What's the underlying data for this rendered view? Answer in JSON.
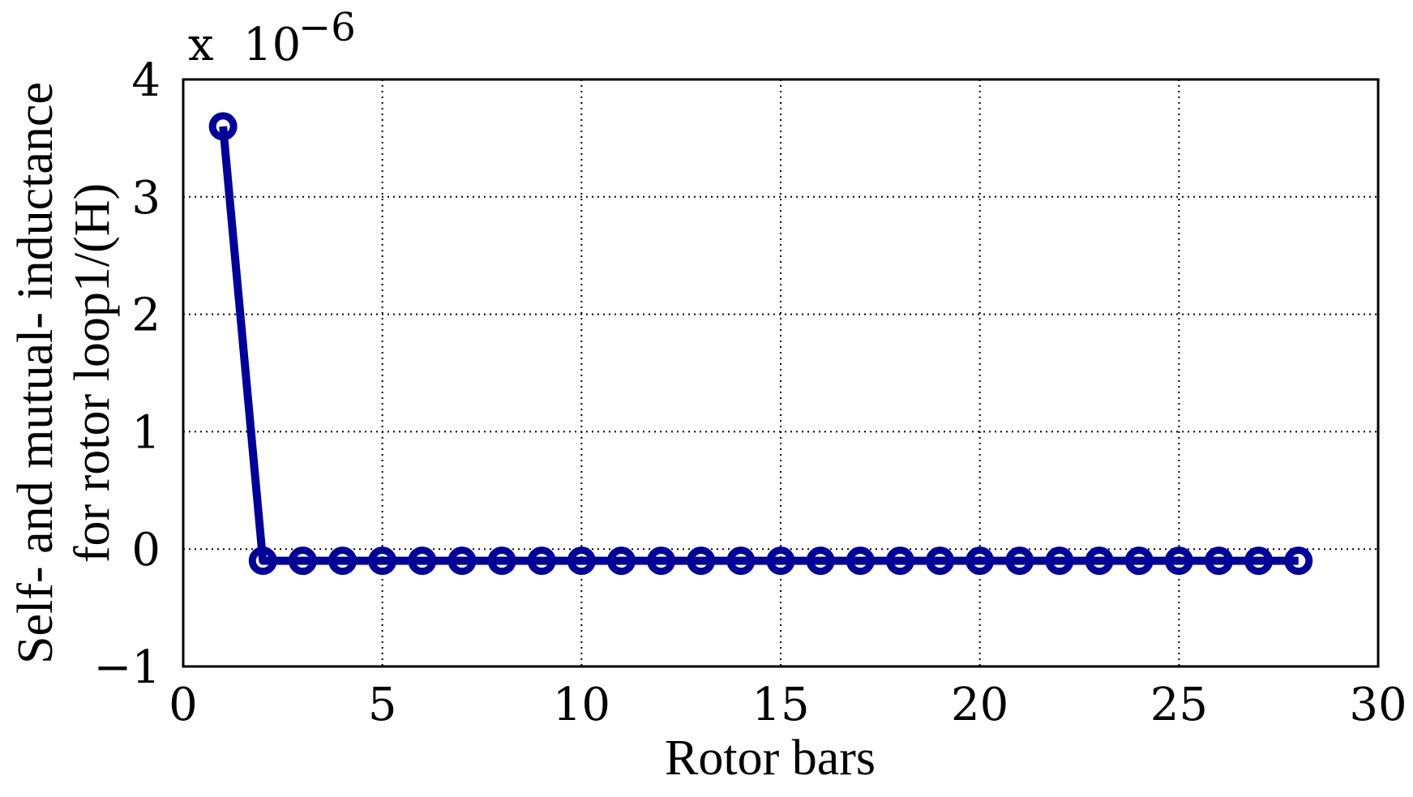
{
  "chart_data": {
    "type": "line",
    "xlabel": "Rotor bars",
    "ylabel": [
      "Self- and mutual- inductance",
      "for rotor loop1/(H)"
    ],
    "y_exponent_label": {
      "prefix": "x",
      "base": "10",
      "exponent": "−6"
    },
    "xlim": [
      0,
      30
    ],
    "ylim": [
      -1,
      4
    ],
    "xticks": [
      0,
      5,
      10,
      15,
      20,
      25,
      30
    ],
    "yticks": [
      -1,
      0,
      1,
      2,
      3,
      4
    ],
    "xtick_labels": [
      "0",
      "5",
      "10",
      "15",
      "20",
      "25",
      "30"
    ],
    "ytick_labels": [
      "−1",
      "0",
      "1",
      "2",
      "3",
      "4"
    ],
    "grid": true,
    "series": [
      {
        "color": "#000099",
        "marker": "circle",
        "x": [
          1,
          2,
          3,
          4,
          5,
          6,
          7,
          8,
          9,
          10,
          11,
          12,
          13,
          14,
          15,
          16,
          17,
          18,
          19,
          20,
          21,
          22,
          23,
          24,
          25,
          26,
          27,
          28
        ],
        "y": [
          3.6,
          -0.1,
          -0.1,
          -0.1,
          -0.1,
          -0.1,
          -0.1,
          -0.1,
          -0.1,
          -0.1,
          -0.1,
          -0.1,
          -0.1,
          -0.1,
          -0.1,
          -0.1,
          -0.1,
          -0.1,
          -0.1,
          -0.1,
          -0.1,
          -0.1,
          -0.1,
          -0.1,
          -0.1,
          -0.1,
          -0.1,
          -0.1
        ]
      }
    ]
  }
}
